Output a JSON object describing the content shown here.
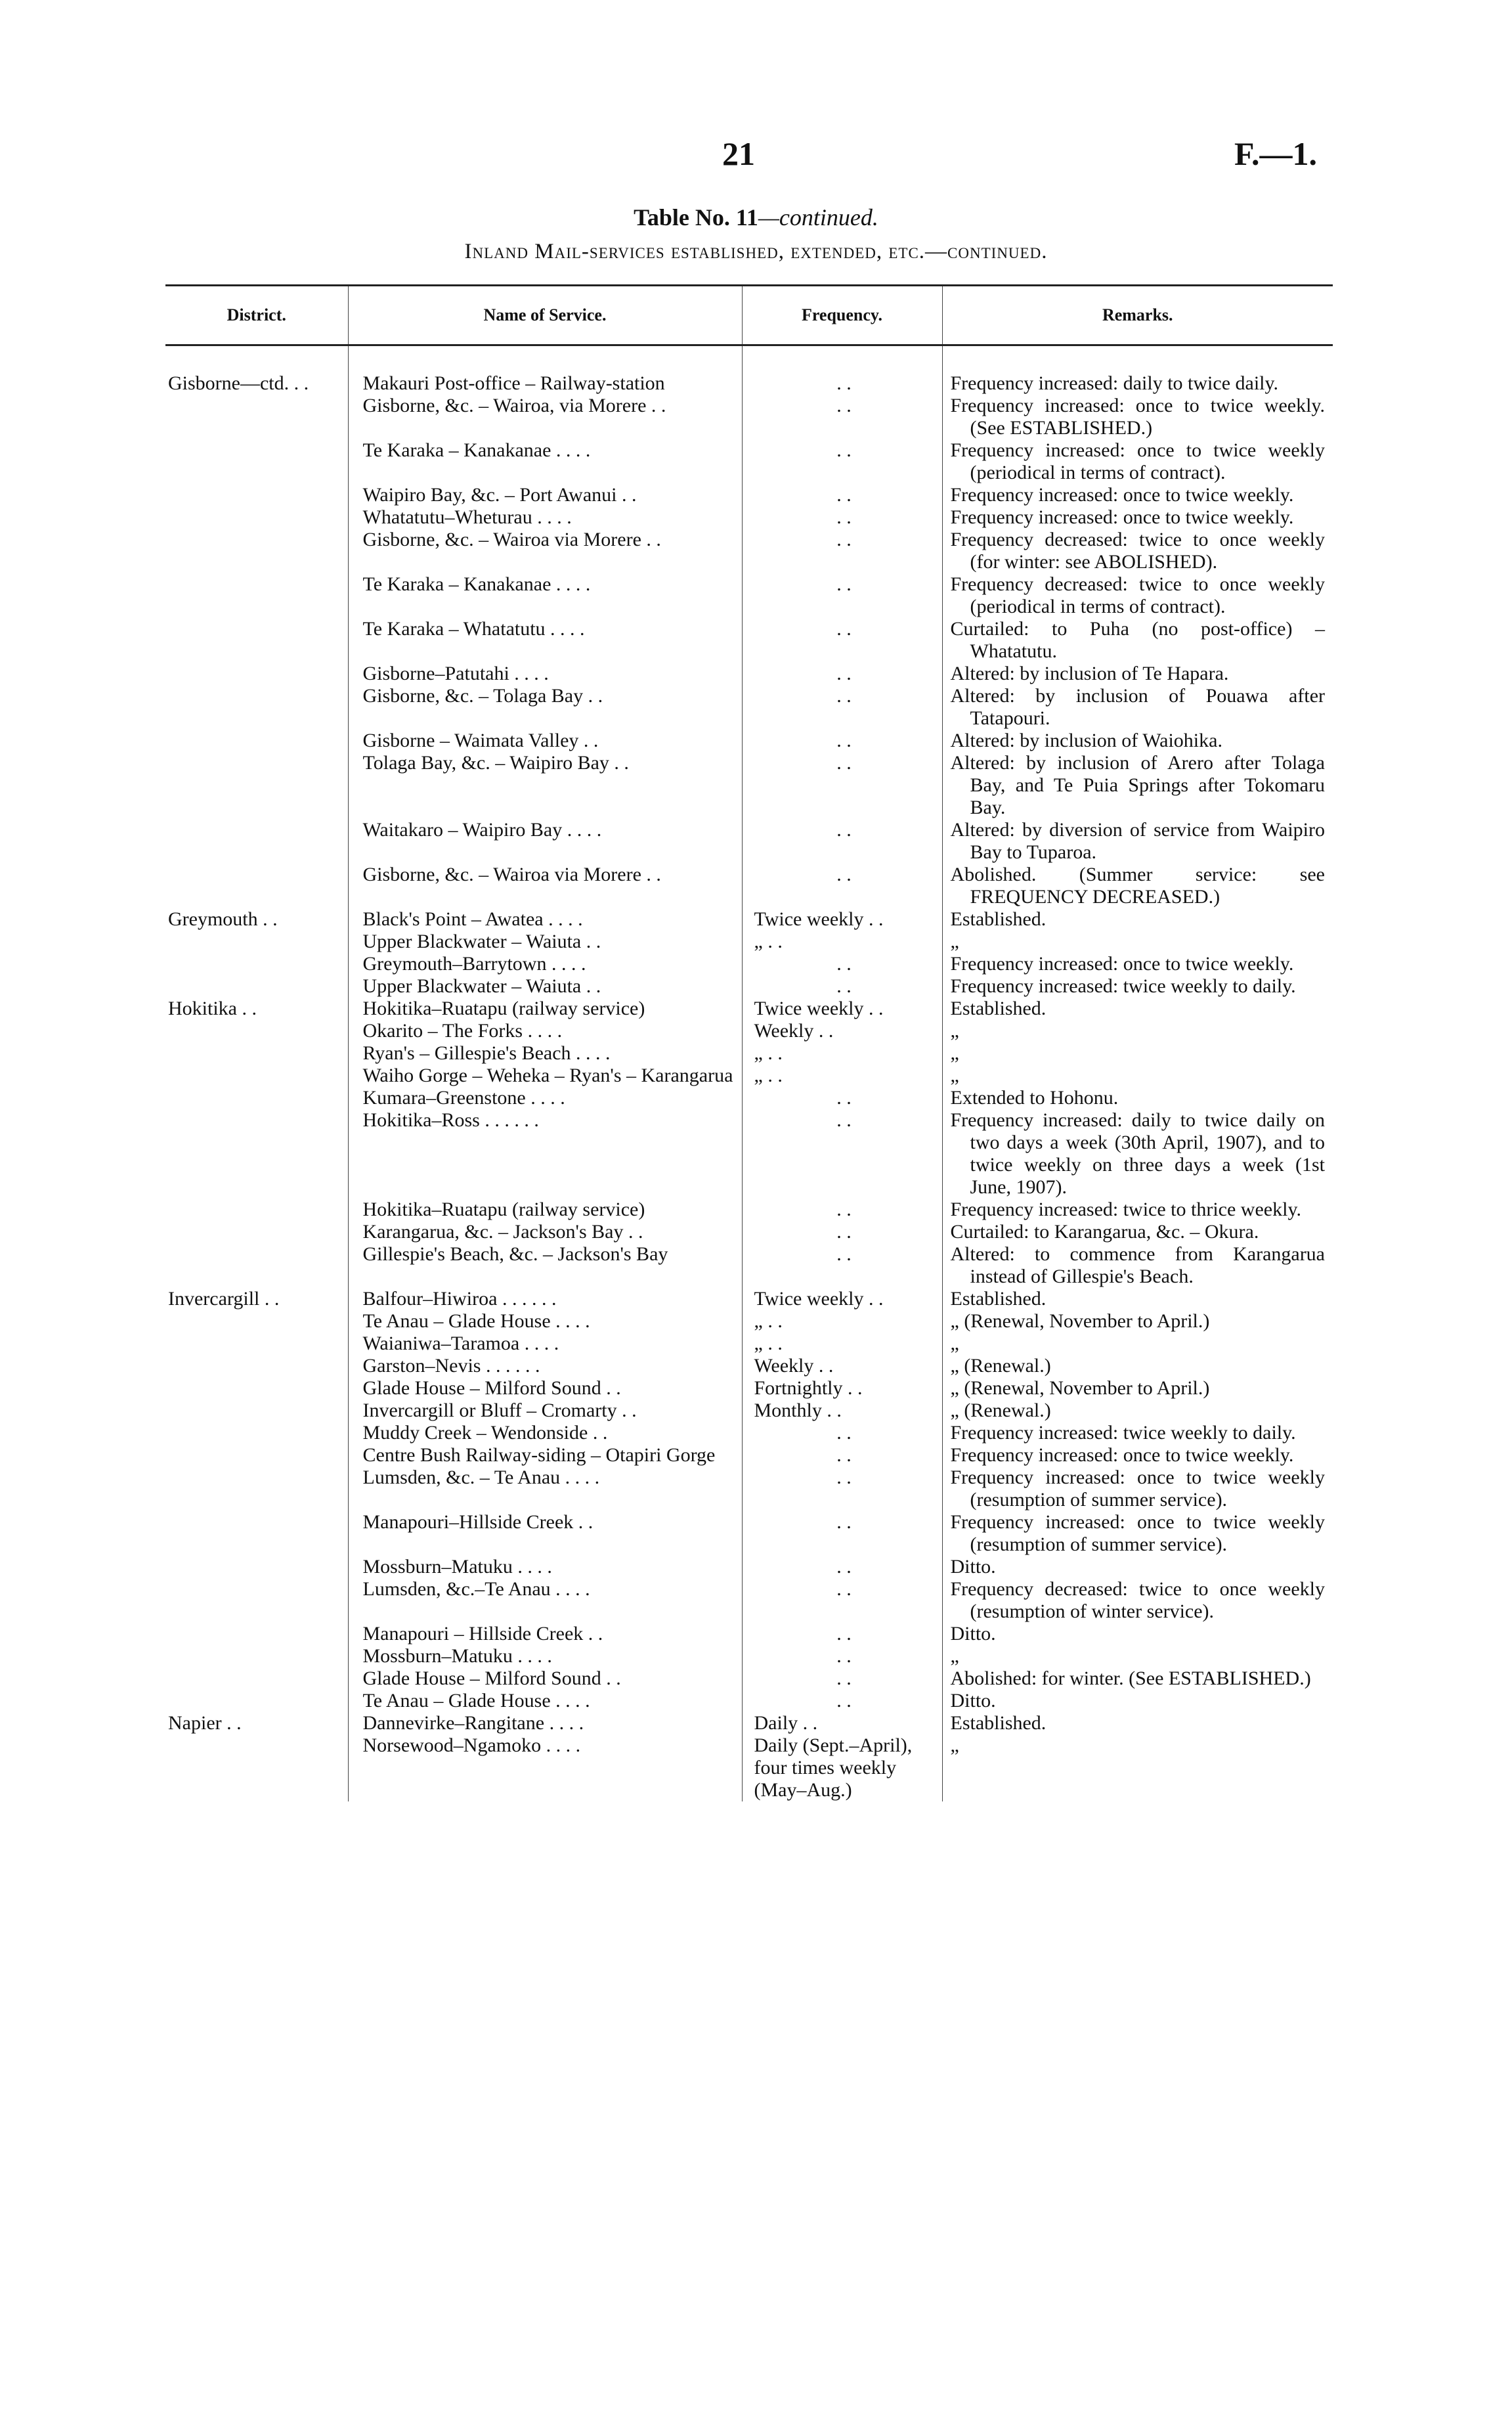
{
  "header": {
    "page_number": "21",
    "doc_code": "F.—1.",
    "table_title": "Table No. 11",
    "table_title_suffix": "—continued.",
    "subtitle": "Inland Mail-services established, extended, etc.—continued."
  },
  "table": {
    "columns": [
      "District.",
      "Name of Service.",
      "Frequency.",
      "Remarks."
    ],
    "rows": [
      {
        "district": "Gisborne—ctd. . .",
        "name": "Makauri Post-office – Railway-station",
        "frequency": ". .",
        "remarks": "Frequency increased: daily to twice daily."
      },
      {
        "district": "",
        "name": "Gisborne, &c. – Wairoa, via Morere . .",
        "frequency": ". .",
        "remarks": "Frequency increased: once to twice weekly. (See ESTABLISHED.)"
      },
      {
        "district": "",
        "name": "Te Karaka – Kanakanae . .   . .",
        "frequency": ". .",
        "remarks": "Frequency increased: once to twice weekly (periodical in terms of contract)."
      },
      {
        "district": "",
        "name": "Waipiro Bay, &c. – Port Awanui . .",
        "frequency": ". .",
        "remarks": "Frequency increased: once to twice weekly."
      },
      {
        "district": "",
        "name": "Whatatutu–Wheturau   . .   . .",
        "frequency": ". .",
        "remarks": "Frequency increased: once to twice weekly."
      },
      {
        "district": "",
        "name": "Gisborne, &c. – Wairoa via Morere . .",
        "frequency": ". .",
        "remarks": "Frequency decreased: twice to once weekly (for winter: see ABOLISHED)."
      },
      {
        "district": "",
        "name": "Te Karaka – Kanakanae . .   . .",
        "frequency": ". .",
        "remarks": "Frequency decreased: twice to once weekly (periodical in terms of contract)."
      },
      {
        "district": "",
        "name": "Te Karaka – Whatatutu . .   . .",
        "frequency": ". .",
        "remarks": "Curtailed: to Puha (no post-office) – Whatatutu."
      },
      {
        "district": "",
        "name": "Gisborne–Patutahi   . .   . .",
        "frequency": ". .",
        "remarks": "Altered: by inclusion of Te Hapara."
      },
      {
        "district": "",
        "name": "Gisborne, &c. – Tolaga Bay   . .",
        "frequency": ". .",
        "remarks": "Altered: by inclusion of Pouawa after Tatapouri."
      },
      {
        "district": "",
        "name": "Gisborne – Waimata Valley   . .",
        "frequency": ". .",
        "remarks": "Altered: by inclusion of Waiohika."
      },
      {
        "district": "",
        "name": "Tolaga Bay, &c. – Waipiro Bay   . .",
        "frequency": ". .",
        "remarks": "Altered: by inclusion of Arero after Tolaga Bay, and Te Puia Springs after Tokomaru Bay."
      },
      {
        "district": "",
        "name": "Waitakaro – Waipiro Bay . .   . .",
        "frequency": ". .",
        "remarks": "Altered: by diversion of service from Waipiro Bay to Tuparoa."
      },
      {
        "district": "",
        "name": "Gisborne, &c. – Wairoa via Morere . .",
        "frequency": ". .",
        "remarks": "Abolished. (Summer service: see FREQUENCY DECREASED.)"
      },
      {
        "district": "Greymouth   . .",
        "name": "Black's Point – Awatea . .   . .",
        "frequency": "Twice weekly   . .",
        "remarks": "Established."
      },
      {
        "district": "",
        "name": "Upper Blackwater – Waiuta   . .",
        "frequency": "„   . .",
        "remarks": "„"
      },
      {
        "district": "",
        "name": "Greymouth–Barrytown . .   . .",
        "frequency": ". .",
        "remarks": "Frequency increased: once to twice weekly."
      },
      {
        "district": "",
        "name": "Upper Blackwater – Waiuta   . .",
        "frequency": ". .",
        "remarks": "Frequency increased: twice weekly to daily."
      },
      {
        "district": "Hokitika   . .",
        "name": "Hokitika–Ruatapu (railway service)",
        "frequency": "Twice weekly   . .",
        "remarks": "Established."
      },
      {
        "district": "",
        "name": "Okarito – The Forks   . .   . .",
        "frequency": "Weekly   . .",
        "remarks": "„"
      },
      {
        "district": "",
        "name": "Ryan's – Gillespie's Beach . .   . .",
        "frequency": "„   . .",
        "remarks": "„"
      },
      {
        "district": "",
        "name": "Waiho Gorge – Weheka – Ryan's – Karangarua",
        "frequency": "„   . .",
        "remarks": "„"
      },
      {
        "district": "",
        "name": "Kumara–Greenstone   . .   . .",
        "frequency": ". .",
        "remarks": "Extended to Hohonu."
      },
      {
        "district": "",
        "name": "Hokitika–Ross . .   . .   . .",
        "frequency": ". .",
        "remarks": "Frequency increased: daily to twice daily on two days a week (30th April, 1907), and to twice weekly on three days a week (1st June, 1907)."
      },
      {
        "district": "",
        "name": "Hokitika–Ruatapu (railway service)",
        "frequency": ". .",
        "remarks": "Frequency increased: twice to thrice weekly."
      },
      {
        "district": "",
        "name": "Karangarua, &c. – Jackson's Bay . .",
        "frequency": ". .",
        "remarks": "Curtailed: to Karangarua, &c. – Okura."
      },
      {
        "district": "",
        "name": "Gillespie's Beach, &c. – Jackson's Bay",
        "frequency": ". .",
        "remarks": "Altered: to commence from Karangarua instead of Gillespie's Beach."
      },
      {
        "district": "Invercargill   . .",
        "name": "Balfour–Hiwiroa . .   . .   . .",
        "frequency": "Twice weekly   . .",
        "remarks": "Established."
      },
      {
        "district": "",
        "name": "Te Anau – Glade House . .   . .",
        "frequency": "„   . .",
        "remarks": "„        (Renewal, November to April.)"
      },
      {
        "district": "",
        "name": "Waianiwa–Taramoa   . .   . .",
        "frequency": "„   . .",
        "remarks": "„"
      },
      {
        "district": "",
        "name": "Garston–Nevis . .   . .   . .",
        "frequency": "Weekly   . .",
        "remarks": "„        (Renewal.)"
      },
      {
        "district": "",
        "name": "Glade House – Milford Sound   . .",
        "frequency": "Fortnightly   . .",
        "remarks": "„        (Renewal, November to April.)"
      },
      {
        "district": "",
        "name": "Invercargill or Bluff – Cromarty   . .",
        "frequency": "Monthly   . .",
        "remarks": "„        (Renewal.)"
      },
      {
        "district": "",
        "name": "Muddy Creek – Wendonside   . .",
        "frequency": ". .",
        "remarks": "Frequency increased: twice weekly to daily."
      },
      {
        "district": "",
        "name": "Centre Bush Railway-siding – Otapiri Gorge",
        "frequency": ". .",
        "remarks": "Frequency increased: once to twice weekly."
      },
      {
        "district": "",
        "name": "Lumsden, &c. – Te Anau . .   . .",
        "frequency": ". .",
        "remarks": "Frequency increased: once to twice weekly (resumption of summer service)."
      },
      {
        "district": "",
        "name": "Manapouri–Hillside Creek   . .",
        "frequency": ". .",
        "remarks": "Frequency increased: once to twice weekly (resumption of summer service)."
      },
      {
        "district": "",
        "name": "Mossburn–Matuku   . .   . .",
        "frequency": ". .",
        "remarks": "Ditto."
      },
      {
        "district": "",
        "name": "Lumsden, &c.–Te Anau . .   . .",
        "frequency": ". .",
        "remarks": "Frequency decreased: twice to once weekly (resumption of winter service)."
      },
      {
        "district": "",
        "name": "Manapouri – Hillside Creek   . .",
        "frequency": ". .",
        "remarks": "Ditto."
      },
      {
        "district": "",
        "name": "Mossburn–Matuku   . .   . .",
        "frequency": ". .",
        "remarks": "„"
      },
      {
        "district": "",
        "name": "Glade House – Milford Sound   . .",
        "frequency": ". .",
        "remarks": "Abolished: for winter. (See ESTABLISHED.)"
      },
      {
        "district": "",
        "name": "Te Anau – Glade House . .   . .",
        "frequency": ". .",
        "remarks": "Ditto."
      },
      {
        "district": "Napier   . .",
        "name": "Dannevirke–Rangitane   . .   . .",
        "frequency": "Daily   . .",
        "remarks": "Established."
      },
      {
        "district": "",
        "name": "Norsewood–Ngamoko   . .   . .",
        "frequency": "Daily (Sept.–April), four times weekly (May–Aug.)",
        "remarks": "„"
      }
    ]
  }
}
